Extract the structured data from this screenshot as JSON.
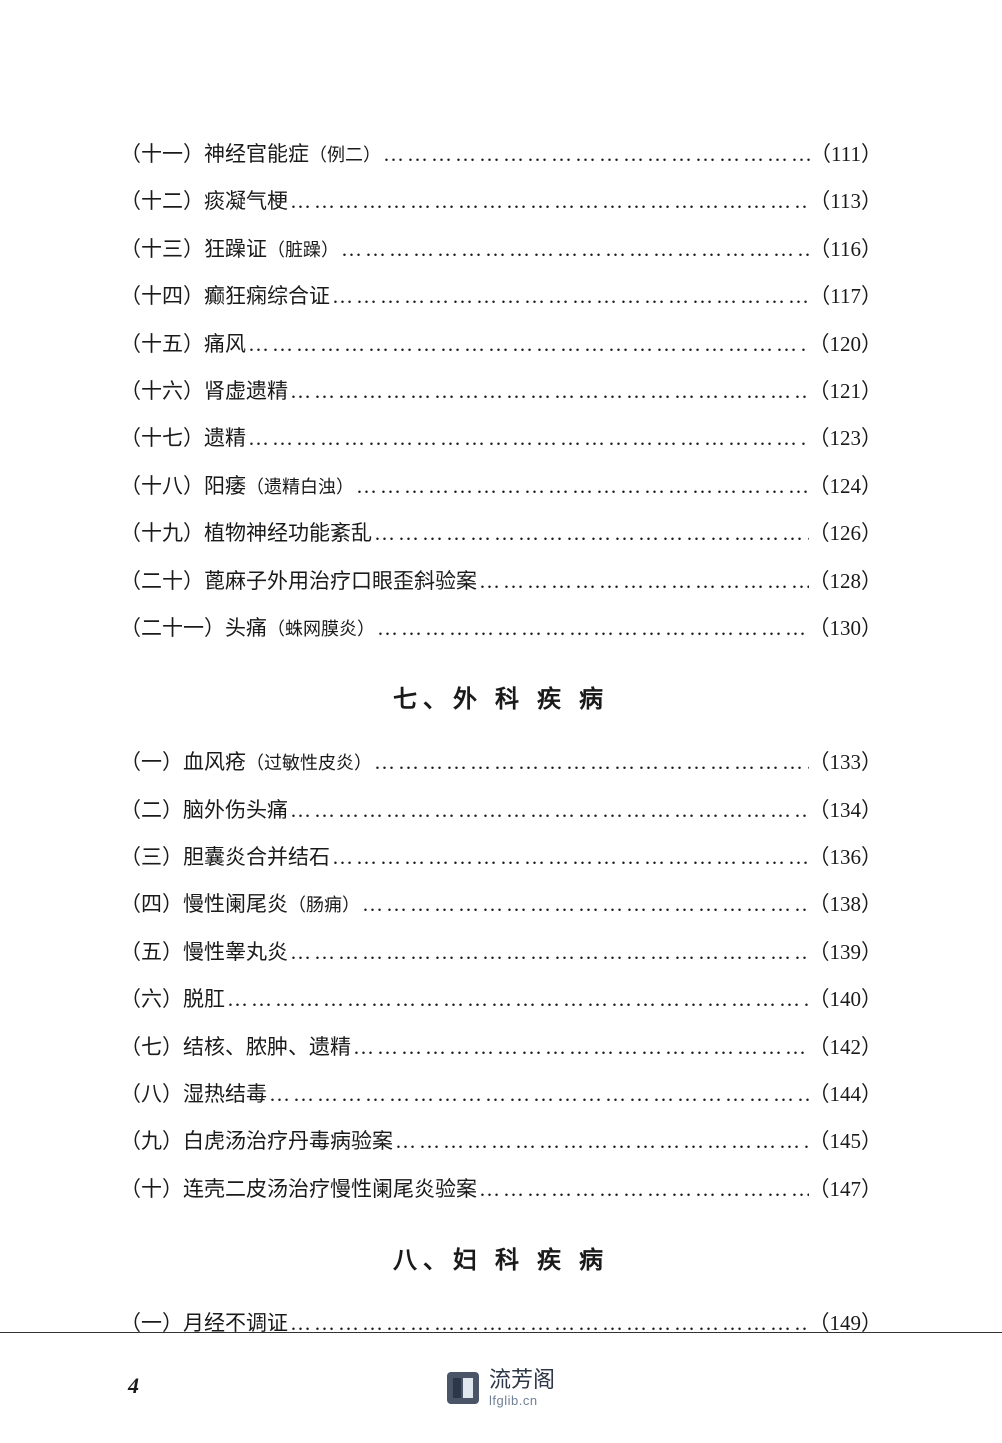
{
  "sections": [
    {
      "entries": [
        {
          "num": "（十一）",
          "title": "神经官能症",
          "note": "（例二）",
          "page": "（111）"
        },
        {
          "num": "（十二）",
          "title": "痰凝气梗",
          "note": "",
          "page": "（113）"
        },
        {
          "num": "（十三）",
          "title": "狂躁证",
          "note": "（脏躁）",
          "page": "（116）"
        },
        {
          "num": "（十四）",
          "title": "癫狂痫综合证",
          "note": "",
          "page": "（117）"
        },
        {
          "num": "（十五）",
          "title": "痛风",
          "note": "",
          "page": "（120）"
        },
        {
          "num": "（十六）",
          "title": "肾虚遗精",
          "note": "",
          "page": "（121）"
        },
        {
          "num": "（十七）",
          "title": "遗精",
          "note": "",
          "page": "（123）"
        },
        {
          "num": "（十八）",
          "title": "阳痿",
          "note": "（遗精白浊）",
          "page": "（124）"
        },
        {
          "num": "（十九）",
          "title": "植物神经功能紊乱",
          "note": "",
          "page": "（126）"
        },
        {
          "num": "（二十）",
          "title": "蓖麻子外用治疗口眼歪斜验案",
          "note": "",
          "page": "（128）"
        },
        {
          "num": "（二十一）",
          "title": "头痛",
          "note": "（蛛网膜炎）",
          "page": "（130）"
        }
      ]
    },
    {
      "heading": "七、外 科 疾 病",
      "entries": [
        {
          "num": "（一）",
          "title": "血风疮",
          "note": "（过敏性皮炎）",
          "page": "（133）"
        },
        {
          "num": "（二）",
          "title": "脑外伤头痛",
          "note": "",
          "page": "（134）"
        },
        {
          "num": "（三）",
          "title": "胆囊炎合并结石",
          "note": "",
          "page": "（136）"
        },
        {
          "num": "（四）",
          "title": "慢性阑尾炎",
          "note": "（肠痈）",
          "page": "（138）"
        },
        {
          "num": "（五）",
          "title": "慢性睾丸炎",
          "note": "",
          "page": "（139）"
        },
        {
          "num": "（六）",
          "title": "脱肛",
          "note": "",
          "page": "（140）"
        },
        {
          "num": "（七）",
          "title": "结核、脓肿、遗精",
          "note": "",
          "page": "（142）"
        },
        {
          "num": "（八）",
          "title": "湿热结毒",
          "note": "",
          "page": "（144）"
        },
        {
          "num": "（九）",
          "title": "白虎汤治疗丹毒病验案",
          "note": "",
          "page": "（145）"
        },
        {
          "num": "（十）",
          "title": "连壳二皮汤治疗慢性阑尾炎验案",
          "note": "",
          "page": "（147）"
        }
      ]
    },
    {
      "heading": "八、妇 科 疾 病",
      "entries": [
        {
          "num": "（一）",
          "title": "月经不调证",
          "note": "",
          "page": "（149）"
        }
      ]
    }
  ],
  "pageNumber": "4",
  "footer": {
    "cn": "流芳阁",
    "url": "lfglib.cn"
  },
  "style": {
    "bodyWidth": 1002,
    "bodyHeight": 1443,
    "background": "#ffffff",
    "textColor": "#1a1a1a",
    "entryFontSize": 21,
    "noteFontSize": 18,
    "headingFontSize": 24,
    "headingLetterSpacing": 6,
    "entryLineGap": 18,
    "footerCnColor": "#2d3748",
    "footerUrlColor": "#718096"
  }
}
